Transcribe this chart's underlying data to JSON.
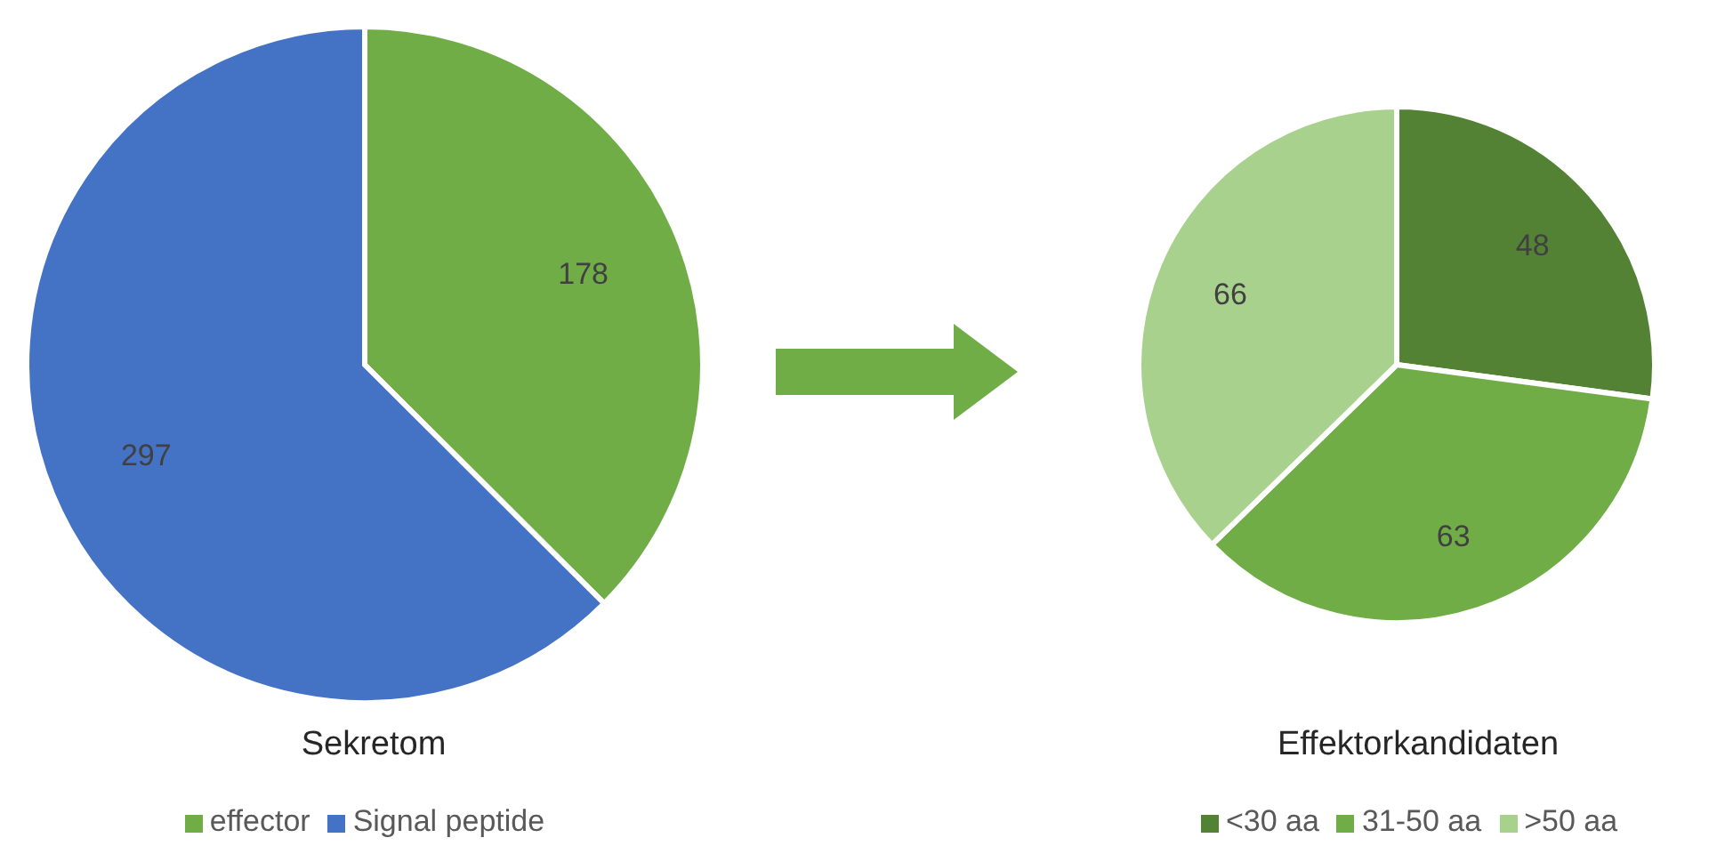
{
  "chart_data": [
    {
      "type": "pie",
      "title": "Sekretom",
      "categories": [
        "effector",
        "Signal peptide"
      ],
      "values": [
        178,
        297
      ],
      "colors": [
        "#70ad47",
        "#4472c4"
      ],
      "data_labels": true,
      "legend": "bottom"
    },
    {
      "type": "pie",
      "title": "Effektorkandidaten",
      "categories": [
        "<30 aa",
        "31-50 aa",
        ">50 aa"
      ],
      "values": [
        48,
        63,
        66
      ],
      "colors": [
        "#548235",
        "#70ad47",
        "#a9d18e"
      ],
      "data_labels": true,
      "legend": "bottom"
    }
  ]
}
